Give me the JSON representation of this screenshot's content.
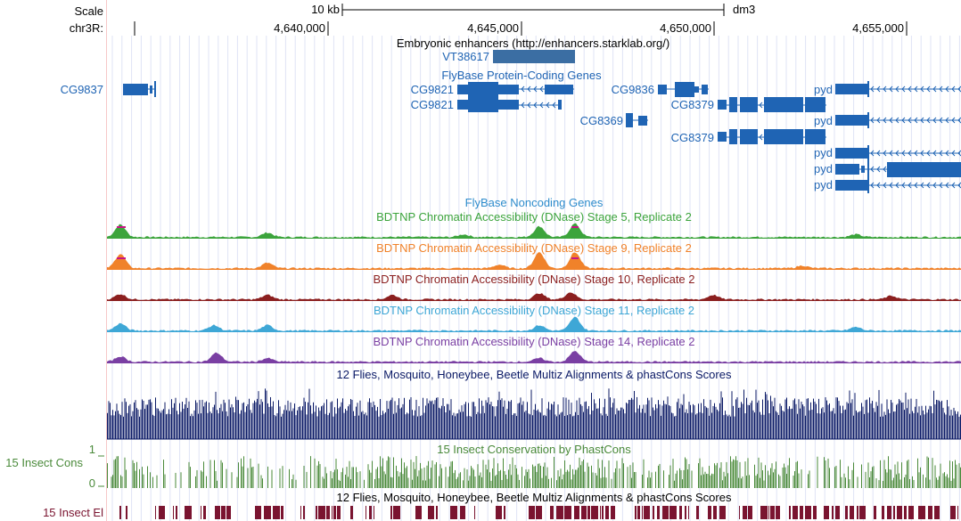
{
  "scale": {
    "label": "Scale",
    "bar_label": "10 kb",
    "assembly": "dm3"
  },
  "ruler": {
    "chrom": "chr3R:",
    "ticks": [
      "4,640,000",
      "4,645,000",
      "4,650,000",
      "4,655,000"
    ]
  },
  "tracks": {
    "enhancers": {
      "title": "Embryonic enhancers (http://enhancers.starklab.org/)",
      "item": "VT38617"
    },
    "genes": {
      "title": "FlyBase Protein-Coding Genes",
      "names": [
        "CG9837",
        "CG9821",
        "CG9821",
        "CG9836",
        "CG8369",
        "CG8379",
        "CG8379",
        "pyd",
        "pyd",
        "pyd",
        "pyd",
        "pyd"
      ]
    },
    "noncoding": {
      "title": "FlyBase Noncoding Genes"
    },
    "dnase": [
      {
        "title": "BDTNP Chromatin Accessibility (DNase) Stage 5, Replicate 2",
        "color": "#3ca43c"
      },
      {
        "title": "BDTNP Chromatin Accessibility (DNase) Stage 9, Replicate 2",
        "color": "#f0822a"
      },
      {
        "title": "BDTNP Chromatin Accessibility (DNase) Stage 10, Replicate 2",
        "color": "#8b1f1f"
      },
      {
        "title": "BDTNP Chromatin Accessibility (DNase) Stage 11, Replicate 2",
        "color": "#3ea7d6"
      },
      {
        "title": "BDTNP Chromatin Accessibility (DNase) Stage 14, Replicate 2",
        "color": "#7a3fa3"
      }
    ],
    "multiz": {
      "title": "12 Flies, Mosquito, Honeybee, Beetle Multiz Alignments & phastCons Scores",
      "color": "#0b1a66"
    },
    "cons": {
      "title": "15 Insect Conservation by PhastCons",
      "side_label": "15 Insect Cons",
      "ymax": "1",
      "ymin": "0",
      "color": "#4a8a3a"
    },
    "el": {
      "title": "12 Flies, Mosquito, Honeybee, Beetle Multiz Alignments & phastCons Scores",
      "side_label": "15 Insect El",
      "color": "#7a1430"
    }
  },
  "colors": {
    "gene": "#1f64b4",
    "enhancer": "#3b6ea3",
    "noncoding": "#2e8ccc",
    "label_blue": "#1f64b4"
  }
}
